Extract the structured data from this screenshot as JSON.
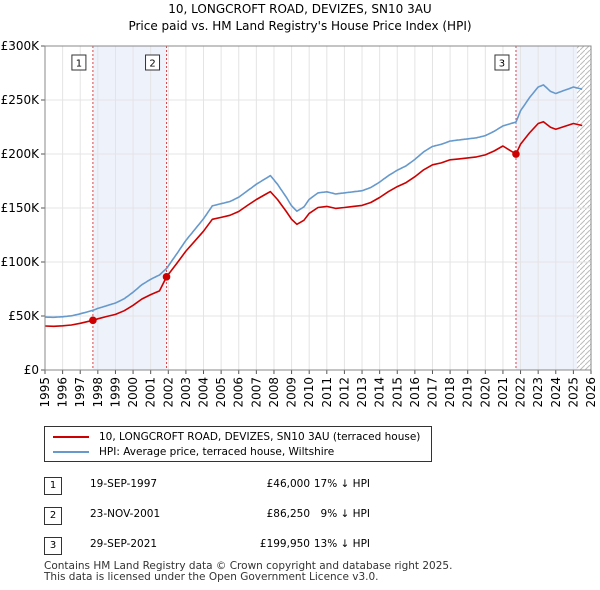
{
  "chart_data": {
    "type": "line",
    "title": "10, LONGCROFT ROAD, DEVIZES, SN10 3AU",
    "subtitle": "Price paid vs. HM Land Registry's House Price Index (HPI)",
    "xlabel": "",
    "ylabel": "",
    "xlim": [
      1995.0,
      2026.0
    ],
    "ylim": [
      0,
      300000
    ],
    "y_ticks": [
      {
        "value": 0,
        "label": "£0"
      },
      {
        "value": 50000,
        "label": "£50K"
      },
      {
        "value": 100000,
        "label": "£100K"
      },
      {
        "value": 150000,
        "label": "£150K"
      },
      {
        "value": 200000,
        "label": "£200K"
      },
      {
        "value": 250000,
        "label": "£250K"
      },
      {
        "value": 300000,
        "label": "£300K"
      }
    ],
    "x_ticks": [
      "1995",
      "1996",
      "1997",
      "1998",
      "1999",
      "2000",
      "2001",
      "2002",
      "2003",
      "2004",
      "2005",
      "2006",
      "2007",
      "2008",
      "2009",
      "2010",
      "2011",
      "2012",
      "2013",
      "2014",
      "2015",
      "2016",
      "2017",
      "2018",
      "2019",
      "2020",
      "2021",
      "2022",
      "2023",
      "2024",
      "2025",
      "2026"
    ],
    "grid": true,
    "shaded_ranges": [
      [
        1997.72,
        2001.9
      ],
      [
        2021.74,
        2025.2
      ]
    ],
    "hatch_from": 2025.2,
    "series": [
      {
        "name": "HPI: Average price, terraced house, Wiltshire",
        "color": "#6699cc",
        "points": [
          [
            1995.0,
            49000
          ],
          [
            1995.5,
            48800
          ],
          [
            1996.0,
            49300
          ],
          [
            1996.5,
            50200
          ],
          [
            1997.0,
            52000
          ],
          [
            1997.72,
            55300
          ],
          [
            1998.0,
            57000
          ],
          [
            1998.5,
            59500
          ],
          [
            1999.0,
            62000
          ],
          [
            1999.5,
            66000
          ],
          [
            2000.0,
            72000
          ],
          [
            2000.5,
            79000
          ],
          [
            2001.0,
            84000
          ],
          [
            2001.5,
            88000
          ],
          [
            2001.9,
            94000
          ],
          [
            2002.5,
            108000
          ],
          [
            2003.0,
            120000
          ],
          [
            2003.5,
            130000
          ],
          [
            2004.0,
            140000
          ],
          [
            2004.5,
            152000
          ],
          [
            2005.0,
            154000
          ],
          [
            2005.5,
            156000
          ],
          [
            2006.0,
            160000
          ],
          [
            2006.5,
            166000
          ],
          [
            2007.0,
            172000
          ],
          [
            2007.5,
            177000
          ],
          [
            2007.8,
            180000
          ],
          [
            2008.2,
            172000
          ],
          [
            2008.7,
            160000
          ],
          [
            2009.0,
            152000
          ],
          [
            2009.3,
            147000
          ],
          [
            2009.7,
            151000
          ],
          [
            2010.0,
            158000
          ],
          [
            2010.5,
            164000
          ],
          [
            2011.0,
            165000
          ],
          [
            2011.5,
            163000
          ],
          [
            2012.0,
            164000
          ],
          [
            2012.5,
            165000
          ],
          [
            2013.0,
            166000
          ],
          [
            2013.5,
            169000
          ],
          [
            2014.0,
            174000
          ],
          [
            2014.5,
            180000
          ],
          [
            2015.0,
            185000
          ],
          [
            2015.5,
            189000
          ],
          [
            2016.0,
            195000
          ],
          [
            2016.5,
            202000
          ],
          [
            2017.0,
            207000
          ],
          [
            2017.5,
            209000
          ],
          [
            2018.0,
            212000
          ],
          [
            2018.5,
            213000
          ],
          [
            2019.0,
            214000
          ],
          [
            2019.5,
            215000
          ],
          [
            2020.0,
            217000
          ],
          [
            2020.5,
            221000
          ],
          [
            2021.0,
            226000
          ],
          [
            2021.74,
            229600
          ],
          [
            2022.0,
            240000
          ],
          [
            2022.5,
            252000
          ],
          [
            2023.0,
            262000
          ],
          [
            2023.3,
            264000
          ],
          [
            2023.7,
            258000
          ],
          [
            2024.0,
            256000
          ],
          [
            2024.5,
            259000
          ],
          [
            2025.0,
            262000
          ],
          [
            2025.5,
            260000
          ]
        ]
      },
      {
        "name": "10, LONGCROFT ROAD, DEVIZES, SN10 3AU (terraced house)",
        "color": "#cc0000",
        "points": [
          [
            1995.0,
            40700
          ],
          [
            1995.5,
            40500
          ],
          [
            1996.0,
            40900
          ],
          [
            1996.5,
            41700
          ],
          [
            1997.0,
            43200
          ],
          [
            1997.72,
            46000
          ],
          [
            1998.0,
            47400
          ],
          [
            1998.5,
            49500
          ],
          [
            1999.0,
            51500
          ],
          [
            1999.5,
            54900
          ],
          [
            2000.0,
            59900
          ],
          [
            2000.5,
            65700
          ],
          [
            2001.0,
            69800
          ],
          [
            2001.5,
            73200
          ],
          [
            2001.9,
            86250
          ],
          [
            2002.5,
            99100
          ],
          [
            2003.0,
            110100
          ],
          [
            2003.5,
            119300
          ],
          [
            2004.0,
            128500
          ],
          [
            2004.5,
            139500
          ],
          [
            2005.0,
            141300
          ],
          [
            2005.5,
            143200
          ],
          [
            2006.0,
            146800
          ],
          [
            2006.5,
            152400
          ],
          [
            2007.0,
            157900
          ],
          [
            2007.5,
            162500
          ],
          [
            2007.8,
            165200
          ],
          [
            2008.2,
            157900
          ],
          [
            2008.7,
            146800
          ],
          [
            2009.0,
            139500
          ],
          [
            2009.3,
            134900
          ],
          [
            2009.7,
            138600
          ],
          [
            2010.0,
            145000
          ],
          [
            2010.5,
            150500
          ],
          [
            2011.0,
            151500
          ],
          [
            2011.5,
            149600
          ],
          [
            2012.0,
            150500
          ],
          [
            2012.5,
            151500
          ],
          [
            2013.0,
            152400
          ],
          [
            2013.5,
            155100
          ],
          [
            2014.0,
            159700
          ],
          [
            2014.5,
            165200
          ],
          [
            2015.0,
            169800
          ],
          [
            2015.5,
            173500
          ],
          [
            2016.0,
            179000
          ],
          [
            2016.5,
            185400
          ],
          [
            2017.0,
            190000
          ],
          [
            2017.5,
            191800
          ],
          [
            2018.0,
            194600
          ],
          [
            2018.5,
            195500
          ],
          [
            2019.0,
            196400
          ],
          [
            2019.5,
            197300
          ],
          [
            2020.0,
            199200
          ],
          [
            2020.5,
            202800
          ],
          [
            2021.0,
            207400
          ],
          [
            2021.74,
            199950
          ],
          [
            2022.0,
            209000
          ],
          [
            2022.5,
            219400
          ],
          [
            2023.0,
            228200
          ],
          [
            2023.3,
            229900
          ],
          [
            2023.7,
            224700
          ],
          [
            2024.0,
            222900
          ],
          [
            2024.5,
            225600
          ],
          [
            2025.0,
            228200
          ],
          [
            2025.5,
            226400
          ]
        ]
      }
    ],
    "sale_markers": [
      {
        "label": "1",
        "x": 1997.72,
        "y": 46000
      },
      {
        "label": "2",
        "x": 2001.9,
        "y": 86250
      },
      {
        "label": "3",
        "x": 2021.74,
        "y": 199950
      }
    ]
  },
  "legend": {
    "property_label": "10, LONGCROFT ROAD, DEVIZES, SN10 3AU (terraced house)",
    "hpi_label": "HPI: Average price, terraced house, Wiltshire"
  },
  "sales": [
    {
      "num": "1",
      "date": "19-SEP-1997",
      "price": "£46,000",
      "hpi_diff": "17% ↓ HPI"
    },
    {
      "num": "2",
      "date": "23-NOV-2001",
      "price": "£86,250",
      "hpi_diff": "9% ↓ HPI"
    },
    {
      "num": "3",
      "date": "29-SEP-2021",
      "price": "£199,950",
      "hpi_diff": "13% ↓ HPI"
    }
  ],
  "footer": {
    "line1": "Contains HM Land Registry data © Crown copyright and database right 2025.",
    "line2": "This data is licensed under the Open Government Licence v3.0."
  }
}
